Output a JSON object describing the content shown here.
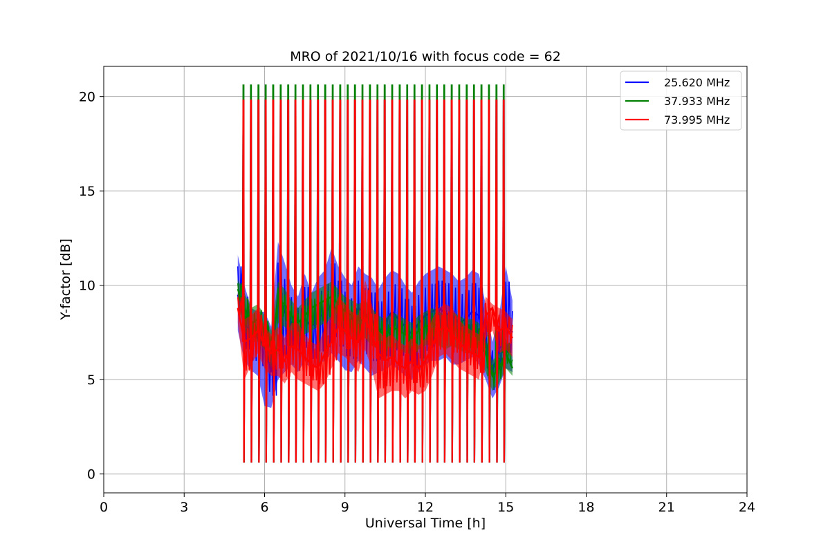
{
  "chart_data": {
    "type": "line",
    "title": "MRO of 2021/10/16 with focus code = 62",
    "xlabel": "Universal Time [h]",
    "ylabel": "Y-factor [dB]",
    "xlim": [
      0,
      24
    ],
    "ylim": [
      -1,
      21.6
    ],
    "xticks": [
      0,
      3,
      6,
      9,
      12,
      15,
      18,
      21,
      24
    ],
    "xtick_labels": [
      "0",
      "3",
      "6",
      "9",
      "12",
      "15",
      "18",
      "21",
      "24"
    ],
    "yticks": [
      0,
      5,
      10,
      15,
      20
    ],
    "ytick_labels": [
      "0",
      "5",
      "10",
      "15",
      "20"
    ],
    "grid": true,
    "legend_position": "top-right",
    "time_range_h": [
      5.0,
      15.25
    ],
    "calibration_spike_times_h": [
      5.22,
      5.5,
      5.78,
      6.05,
      6.33,
      6.61,
      6.89,
      7.16,
      7.44,
      7.72,
      8.0,
      8.27,
      8.55,
      8.83,
      9.11,
      9.38,
      9.66,
      9.94,
      10.22,
      10.49,
      10.77,
      11.05,
      11.33,
      11.6,
      11.88,
      12.16,
      12.44,
      12.71,
      12.99,
      13.27,
      13.55,
      13.82,
      14.1,
      14.38,
      14.66,
      14.93
    ],
    "series": [
      {
        "name": "25.620 MHz",
        "color": "#0000ff",
        "spike_high_db": 19.8,
        "spike_low_db": 0.6,
        "x": [
          5.0,
          5.25,
          5.5,
          5.75,
          6.0,
          6.25,
          6.5,
          6.75,
          7.0,
          7.25,
          7.5,
          7.75,
          8.0,
          8.25,
          8.5,
          8.75,
          9.0,
          9.25,
          9.5,
          9.75,
          10.0,
          10.25,
          10.5,
          10.75,
          11.0,
          11.25,
          11.5,
          11.75,
          12.0,
          12.25,
          12.5,
          12.75,
          13.0,
          13.25,
          13.5,
          13.75,
          14.0,
          14.25,
          14.5,
          14.75,
          15.0,
          15.25
        ],
        "y": [
          9.5,
          8.0,
          7.4,
          7.2,
          6.8,
          5.4,
          9.6,
          8.6,
          8.0,
          7.2,
          8.2,
          7.8,
          8.3,
          8.5,
          9.0,
          8.6,
          8.4,
          8.0,
          8.8,
          8.5,
          8.2,
          7.5,
          8.0,
          8.6,
          8.2,
          7.8,
          7.4,
          8.0,
          8.4,
          8.6,
          8.8,
          8.5,
          8.4,
          8.0,
          8.2,
          8.6,
          8.4,
          7.0,
          5.5,
          6.5,
          8.0,
          7.5
        ],
        "y_min": [
          7.6,
          6.0,
          5.5,
          5.2,
          3.6,
          3.5,
          5.0,
          5.4,
          5.8,
          5.4,
          6.0,
          5.5,
          5.8,
          6.0,
          6.4,
          6.0,
          5.5,
          5.4,
          6.0,
          5.6,
          5.2,
          5.4,
          5.5,
          5.8,
          5.5,
          5.2,
          5.0,
          5.4,
          5.8,
          6.0,
          6.0,
          6.2,
          5.8,
          5.8,
          6.0,
          6.2,
          5.8,
          5.0,
          4.0,
          4.6,
          5.6,
          5.4
        ],
        "y_max": [
          11.6,
          10.0,
          8.8,
          8.6,
          8.6,
          7.8,
          12.3,
          11.2,
          10.0,
          9.4,
          10.6,
          9.6,
          10.4,
          10.8,
          12.0,
          11.0,
          10.4,
          10.0,
          11.0,
          10.6,
          10.4,
          9.8,
          10.4,
          10.8,
          10.6,
          10.0,
          9.6,
          10.2,
          10.6,
          10.8,
          11.0,
          10.8,
          10.6,
          10.2,
          10.4,
          10.8,
          10.6,
          9.0,
          7.0,
          8.4,
          11.0,
          9.2
        ]
      },
      {
        "name": "37.933 MHz",
        "color": "#008000",
        "spike_high_db": 20.6,
        "spike_low_db": 0.6,
        "x": [
          5.0,
          5.25,
          5.5,
          5.75,
          6.0,
          6.25,
          6.5,
          6.75,
          7.0,
          7.25,
          7.5,
          7.75,
          8.0,
          8.25,
          8.5,
          8.75,
          9.0,
          9.25,
          9.5,
          9.75,
          10.0,
          10.25,
          10.5,
          10.75,
          11.0,
          11.25,
          11.5,
          11.75,
          12.0,
          12.25,
          12.5,
          12.75,
          13.0,
          13.25,
          13.5,
          13.75,
          14.0,
          14.25,
          14.5,
          14.75,
          15.0,
          15.25
        ],
        "y": [
          9.8,
          8.8,
          8.0,
          8.2,
          7.6,
          6.6,
          9.2,
          9.0,
          8.4,
          8.0,
          8.4,
          8.8,
          9.0,
          9.2,
          9.4,
          9.0,
          8.6,
          8.4,
          8.2,
          8.4,
          8.0,
          7.6,
          7.4,
          7.8,
          7.6,
          7.4,
          7.2,
          7.6,
          7.8,
          8.0,
          7.8,
          7.6,
          7.8,
          7.6,
          7.4,
          7.4,
          7.2,
          6.4,
          5.2,
          5.6,
          6.4,
          5.6
        ],
        "y_min": [
          9.0,
          7.6,
          7.0,
          7.0,
          6.6,
          5.6,
          8.0,
          7.8,
          7.4,
          7.0,
          7.4,
          7.6,
          7.8,
          8.0,
          8.2,
          7.8,
          7.4,
          7.2,
          7.0,
          7.2,
          6.8,
          6.6,
          6.4,
          6.8,
          6.6,
          6.4,
          6.2,
          6.6,
          6.8,
          7.0,
          6.8,
          6.6,
          6.8,
          6.6,
          6.4,
          6.4,
          6.2,
          5.4,
          4.4,
          4.8,
          5.6,
          5.2
        ],
        "y_max": [
          10.3,
          9.6,
          8.8,
          9.0,
          8.4,
          7.6,
          10.2,
          9.8,
          9.2,
          8.8,
          9.2,
          9.6,
          9.8,
          10.0,
          10.2,
          9.8,
          9.4,
          9.2,
          9.0,
          9.2,
          8.8,
          8.4,
          8.2,
          8.6,
          8.4,
          8.2,
          8.0,
          8.4,
          8.6,
          8.8,
          8.6,
          8.4,
          8.6,
          8.4,
          8.2,
          8.2,
          8.0,
          7.2,
          6.0,
          6.4,
          7.2,
          6.2
        ]
      },
      {
        "name": "73.995 MHz",
        "color": "#ff0000",
        "spike_high_db": 19.8,
        "spike_low_db": 0.6,
        "x": [
          5.0,
          5.25,
          5.5,
          5.75,
          6.0,
          6.25,
          6.5,
          6.75,
          7.0,
          7.25,
          7.5,
          7.75,
          8.0,
          8.25,
          8.5,
          8.75,
          9.0,
          9.25,
          9.5,
          9.75,
          10.0,
          10.25,
          10.5,
          10.75,
          11.0,
          11.25,
          11.5,
          11.75,
          12.0,
          12.25,
          12.5,
          12.75,
          13.0,
          13.25,
          13.5,
          13.75,
          14.0,
          14.25,
          14.5,
          14.75,
          15.0,
          15.25
        ],
        "y": [
          8.8,
          7.0,
          7.2,
          7.6,
          6.8,
          6.4,
          6.6,
          6.0,
          6.8,
          6.6,
          6.2,
          5.8,
          5.6,
          6.4,
          7.0,
          7.8,
          7.6,
          7.2,
          7.0,
          8.2,
          7.4,
          6.4,
          6.0,
          6.2,
          5.8,
          5.6,
          6.0,
          5.6,
          6.0,
          6.8,
          7.6,
          7.8,
          7.4,
          7.0,
          6.6,
          6.4,
          6.2,
          8.4,
          8.8,
          7.6,
          7.8,
          7.2
        ],
        "y_min": [
          8.0,
          5.0,
          5.8,
          6.4,
          5.6,
          5.2,
          5.2,
          4.8,
          5.4,
          5.0,
          4.8,
          4.6,
          4.4,
          4.8,
          5.6,
          6.4,
          6.2,
          5.8,
          5.4,
          6.6,
          5.6,
          4.0,
          4.2,
          4.4,
          4.4,
          4.0,
          4.4,
          4.2,
          4.4,
          5.2,
          6.2,
          6.4,
          6.0,
          5.6,
          5.4,
          5.2,
          5.0,
          7.2,
          7.6,
          6.4,
          6.6,
          6.2
        ],
        "y_max": [
          9.6,
          8.2,
          8.4,
          8.8,
          7.8,
          7.4,
          7.8,
          7.2,
          8.0,
          8.0,
          7.4,
          7.0,
          6.8,
          7.8,
          8.4,
          9.4,
          9.0,
          8.6,
          8.4,
          10.3,
          9.0,
          7.6,
          7.2,
          7.4,
          7.0,
          6.8,
          7.2,
          6.8,
          7.2,
          8.2,
          8.8,
          9.0,
          8.8,
          8.2,
          7.8,
          7.6,
          7.4,
          9.4,
          9.0,
          8.8,
          8.6,
          8.2
        ]
      }
    ]
  }
}
